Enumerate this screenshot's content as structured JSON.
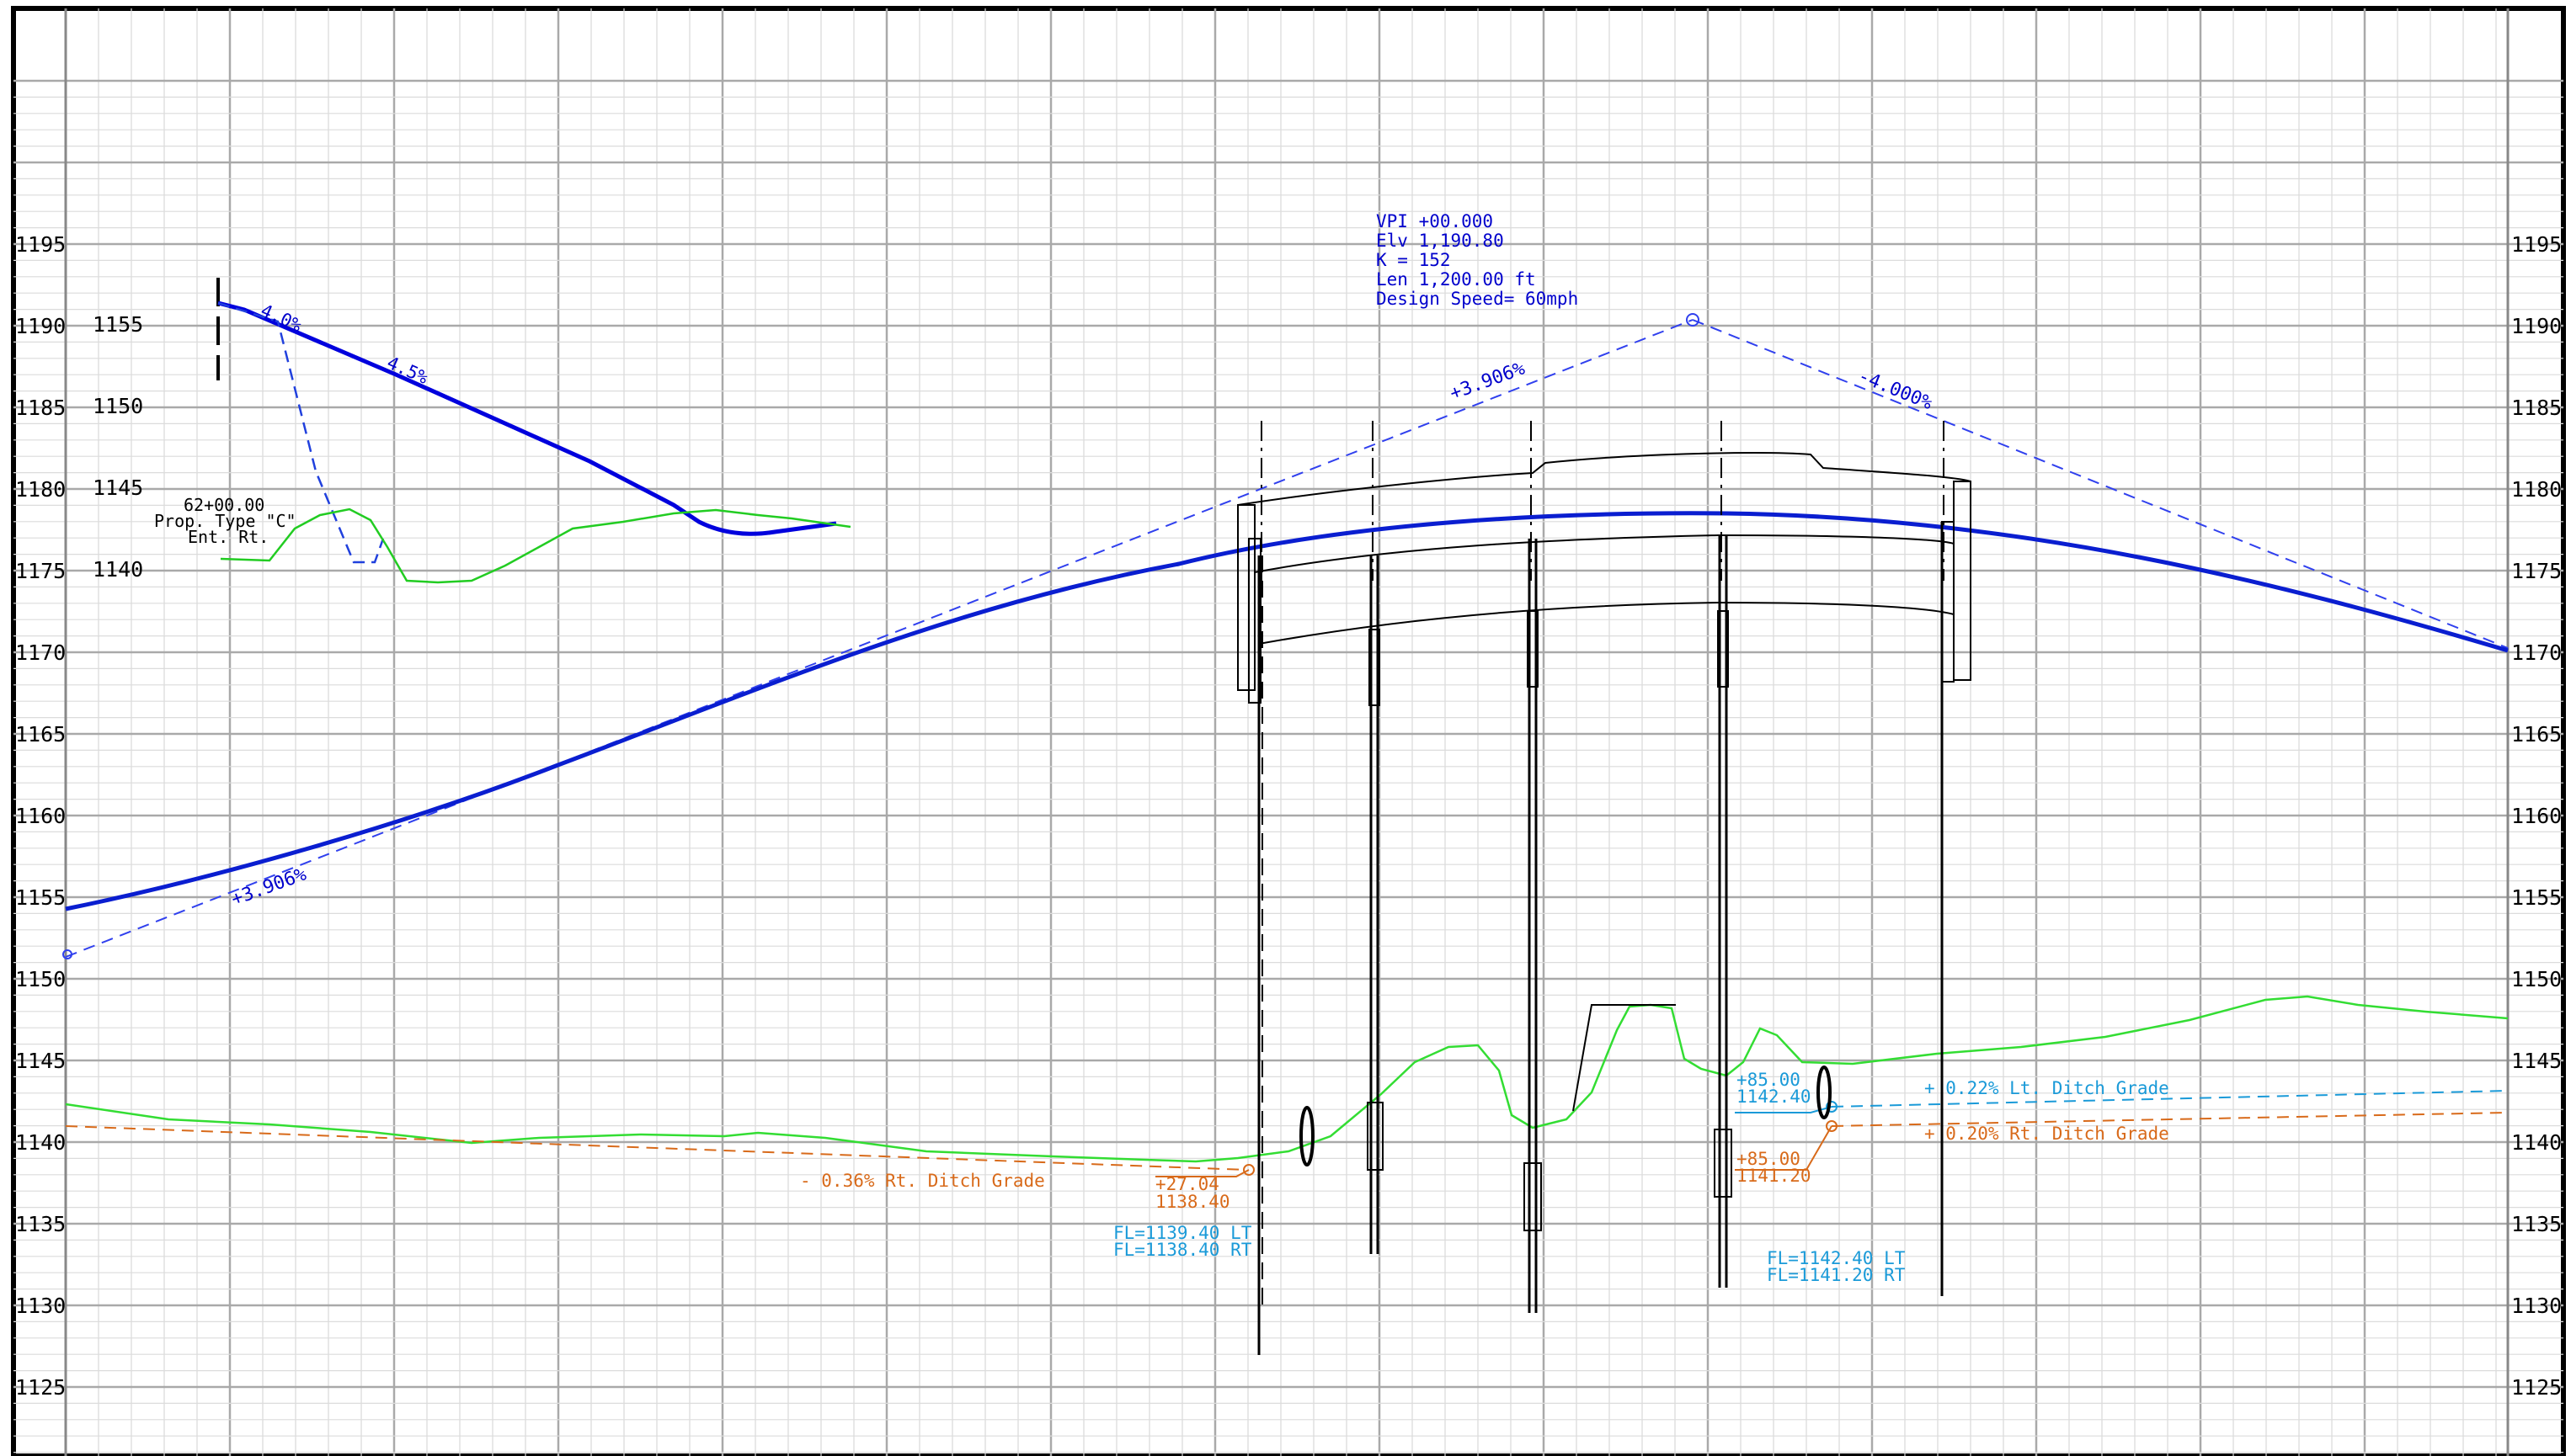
{
  "axes": {
    "left_ticks": [
      "1195",
      "1190",
      "1185",
      "1180",
      "1175",
      "1170",
      "1165",
      "1160",
      "1155",
      "1150",
      "1145",
      "1140",
      "1135",
      "1130",
      "1125"
    ],
    "right_ticks": [
      "1195",
      "1190",
      "1185",
      "1180",
      "1175",
      "1170",
      "1165",
      "1160",
      "1155",
      "1150",
      "1145",
      "1140",
      "1135",
      "1130",
      "1125"
    ],
    "inset_ticks": [
      "1155",
      "1150",
      "1145",
      "1140"
    ]
  },
  "inset": {
    "station": "62+00.00",
    "description_line1": "Prop. Type \"C\"",
    "description_line2": "Ent. Rt.",
    "slope1": "4.0%",
    "slope2": "4.5%"
  },
  "vertical_curve": {
    "vpi": "VPI +00.000",
    "elevation": "Elv 1,190.80",
    "k": "K = 152",
    "length": "Len 1,200.00 ft",
    "design_speed": "Design Speed= 60mph",
    "grade_in": "+3.906%",
    "grade_out": "-4.000%",
    "grade_in_lower": "+3.906%"
  },
  "ditches": {
    "left_grade": "- 0.36% Rt. Ditch Grade",
    "lt_grade": "+ 0.22% Lt. Ditch Grade",
    "rt_grade": "+ 0.20% Rt. Ditch Grade",
    "pt1_station": "+27.04",
    "pt1_elev": "1138.40",
    "fl1_lt": "FL=1139.40 LT",
    "fl1_rt": "FL=1138.40 RT",
    "pt2_station": "+85.00",
    "pt2_elev": "1142.40",
    "pt3_station": "+85.00",
    "pt3_elev": "1141.20",
    "fl2_lt": "FL=1142.40 LT",
    "fl2_rt": "FL=1141.20 RT"
  },
  "colors": {
    "profile": "#0000cc",
    "ground": "#22cc22",
    "rt_ditch": "#d86a1a",
    "lt_ditch": "#1a9ad8",
    "grid": "#c8c8c8"
  }
}
